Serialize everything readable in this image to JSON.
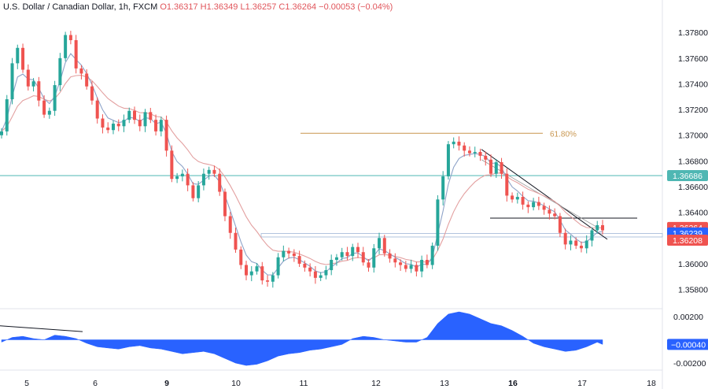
{
  "header": {
    "symbol_text": "U.S. Dollar / Canadian Dollar, 1h, FXCM",
    "ohlc_text": "O1.36317  H1.36349  L1.36257  C1.36264  −0.00053 (−0.04%)"
  },
  "colors": {
    "up": "#26a69a",
    "down": "#ef5350",
    "fast_ma": "#8ea3c8",
    "slow_ma": "#e3a0a0",
    "fib": "#c8964f",
    "level": "#4fb7b3",
    "trendline": "#131722",
    "oscillator": "#2962ff"
  },
  "price_badges": [
    {
      "text": "1.36686",
      "value": 1.36686,
      "color": "#4fb7b3"
    },
    {
      "text": "1.36264",
      "value": 1.36264,
      "color": "#ef5350"
    },
    {
      "text": "1.36239",
      "value": 1.36239,
      "color": "#2962ff"
    },
    {
      "text": "1.36208",
      "value": 1.36208,
      "color": "#ef5350"
    }
  ],
  "annotations": {
    "fib_label": "61.80%",
    "fib_level": 1.37015
  },
  "osc_badge": {
    "text": "−0.00040",
    "value": -0.0004,
    "color": "#2962ff"
  },
  "chart_data": {
    "type": "candlestick",
    "y_ticks": [
      "1.37800",
      "1.37600",
      "1.37400",
      "1.37200",
      "1.37000",
      "1.36800",
      "1.36600",
      "1.36400",
      "1.36000",
      "1.35800"
    ],
    "y_tick_values": [
      1.378,
      1.376,
      1.374,
      1.372,
      1.37,
      1.368,
      1.366,
      1.364,
      1.36,
      1.358
    ],
    "ylim": [
      1.3565,
      1.3793
    ],
    "x_ticks": [
      "5",
      "6",
      "9",
      "10",
      "11",
      "12",
      "13",
      "16",
      "17",
      "18"
    ],
    "x_tick_bold": [
      "9",
      "16"
    ],
    "levels": {
      "horizontal_support": 1.36686,
      "box_top": 1.36235,
      "box_bottom": 1.36208,
      "breakout_line": 1.36355
    },
    "price_path": [
      [
        0,
        1.3703
      ],
      [
        1,
        1.3728
      ],
      [
        2,
        1.3756
      ],
      [
        3,
        1.3768
      ],
      [
        4,
        1.3751
      ],
      [
        5,
        1.3738
      ],
      [
        6,
        1.3742
      ],
      [
        7,
        1.3727
      ],
      [
        8,
        1.3716
      ],
      [
        9,
        1.3719
      ],
      [
        10,
        1.3739
      ],
      [
        11,
        1.376
      ],
      [
        12,
        1.3778
      ],
      [
        13,
        1.3774
      ],
      [
        14,
        1.3752
      ],
      [
        15,
        1.3748
      ],
      [
        16,
        1.3738
      ],
      [
        17,
        1.3727
      ],
      [
        18,
        1.3713
      ],
      [
        19,
        1.3706
      ],
      [
        20,
        1.3704
      ],
      [
        21,
        1.3709
      ],
      [
        22,
        1.3707
      ],
      [
        23,
        1.3712
      ],
      [
        24,
        1.3719
      ],
      [
        25,
        1.3712
      ],
      [
        26,
        1.3707
      ],
      [
        27,
        1.3718
      ],
      [
        28,
        1.3712
      ],
      [
        29,
        1.3703
      ],
      [
        30,
        1.3712
      ],
      [
        31,
        1.3688
      ],
      [
        32,
        1.3666
      ],
      [
        33,
        1.3668
      ],
      [
        34,
        1.367
      ],
      [
        35,
        1.3661
      ],
      [
        36,
        1.3651
      ],
      [
        37,
        1.3661
      ],
      [
        38,
        1.367
      ],
      [
        39,
        1.3673
      ],
      [
        40,
        1.367
      ],
      [
        41,
        1.3656
      ],
      [
        42,
        1.3637
      ],
      [
        43,
        1.3624
      ],
      [
        44,
        1.3611
      ],
      [
        45,
        1.3599
      ],
      [
        46,
        1.3591
      ],
      [
        47,
        1.3594
      ],
      [
        48,
        1.3598
      ],
      [
        49,
        1.3587
      ],
      [
        50,
        1.3586
      ],
      [
        51,
        1.3591
      ],
      [
        52,
        1.3605
      ],
      [
        53,
        1.361
      ],
      [
        54,
        1.3608
      ],
      [
        55,
        1.3606
      ],
      [
        56,
        1.36
      ],
      [
        57,
        1.3597
      ],
      [
        58,
        1.3594
      ],
      [
        59,
        1.3589
      ],
      [
        60,
        1.3591
      ],
      [
        61,
        1.3595
      ],
      [
        62,
        1.3603
      ],
      [
        63,
        1.3605
      ],
      [
        64,
        1.3609
      ],
      [
        65,
        1.3606
      ],
      [
        66,
        1.3613
      ],
      [
        67,
        1.3609
      ],
      [
        68,
        1.3601
      ],
      [
        69,
        1.3597
      ],
      [
        70,
        1.3612
      ],
      [
        71,
        1.362
      ],
      [
        72,
        1.3608
      ],
      [
        73,
        1.3604
      ],
      [
        74,
        1.3601
      ],
      [
        75,
        1.3599
      ],
      [
        76,
        1.3596
      ],
      [
        77,
        1.3599
      ],
      [
        78,
        1.3594
      ],
      [
        79,
        1.3603
      ],
      [
        80,
        1.3599
      ],
      [
        81,
        1.3614
      ],
      [
        82,
        1.365
      ],
      [
        83,
        1.3668
      ],
      [
        84,
        1.3693
      ],
      [
        85,
        1.3695
      ],
      [
        86,
        1.3692
      ],
      [
        87,
        1.3688
      ],
      [
        88,
        1.3686
      ],
      [
        89,
        1.3687
      ],
      [
        90,
        1.3684
      ],
      [
        91,
        1.3681
      ],
      [
        92,
        1.367
      ],
      [
        93,
        1.3679
      ],
      [
        94,
        1.367
      ],
      [
        95,
        1.3653
      ],
      [
        96,
        1.365
      ],
      [
        97,
        1.3652
      ],
      [
        98,
        1.3646
      ],
      [
        99,
        1.3644
      ],
      [
        100,
        1.3648
      ],
      [
        101,
        1.3645
      ],
      [
        102,
        1.3642
      ],
      [
        103,
        1.3639
      ],
      [
        104,
        1.3637
      ],
      [
        105,
        1.3624
      ],
      [
        106,
        1.3615
      ],
      [
        107,
        1.3618
      ],
      [
        108,
        1.3614
      ],
      [
        109,
        1.3612
      ],
      [
        110,
        1.3618
      ],
      [
        111,
        1.3626
      ],
      [
        112,
        1.363
      ],
      [
        113,
        1.3626
      ]
    ],
    "oscillator": {
      "y_ticks": [
        "0.00200",
        "-0.00200"
      ],
      "y_tick_values": [
        0.002,
        -0.002
      ],
      "ylim": [
        -0.0026,
        0.0026
      ],
      "path": [
        [
          0,
          -0.0002
        ],
        [
          2,
          0.0002
        ],
        [
          4,
          0.0003
        ],
        [
          6,
          0.0001
        ],
        [
          8,
          0.0
        ],
        [
          10,
          0.0004
        ],
        [
          12,
          0.0003
        ],
        [
          14,
          0.0001
        ],
        [
          16,
          -0.0003
        ],
        [
          18,
          -0.0006
        ],
        [
          20,
          -0.0007
        ],
        [
          22,
          -0.0008
        ],
        [
          24,
          -0.0006
        ],
        [
          26,
          -0.0005
        ],
        [
          28,
          -0.0007
        ],
        [
          30,
          -0.0008
        ],
        [
          32,
          -0.001
        ],
        [
          34,
          -0.0012
        ],
        [
          36,
          -0.0011
        ],
        [
          38,
          -0.001
        ],
        [
          40,
          -0.0012
        ],
        [
          42,
          -0.0016
        ],
        [
          44,
          -0.002
        ],
        [
          46,
          -0.0022
        ],
        [
          48,
          -0.0021
        ],
        [
          50,
          -0.0018
        ],
        [
          52,
          -0.0014
        ],
        [
          54,
          -0.0012
        ],
        [
          56,
          -0.0011
        ],
        [
          58,
          -0.0009
        ],
        [
          60,
          -0.0008
        ],
        [
          62,
          -0.0006
        ],
        [
          64,
          -0.0004
        ],
        [
          66,
          0.0001
        ],
        [
          68,
          0.0003
        ],
        [
          70,
          0.0002
        ],
        [
          72,
          0.0
        ],
        [
          74,
          -0.0001
        ],
        [
          76,
          -0.0002
        ],
        [
          78,
          -0.0002
        ],
        [
          80,
          0.0002
        ],
        [
          82,
          0.0014
        ],
        [
          84,
          0.0022
        ],
        [
          86,
          0.0024
        ],
        [
          88,
          0.0022
        ],
        [
          90,
          0.0018
        ],
        [
          92,
          0.0014
        ],
        [
          94,
          0.0012
        ],
        [
          96,
          0.0008
        ],
        [
          98,
          0.0003
        ],
        [
          100,
          -0.0003
        ],
        [
          102,
          -0.0006
        ],
        [
          104,
          -0.0008
        ],
        [
          106,
          -0.001
        ],
        [
          108,
          -0.0009
        ],
        [
          110,
          -0.0006
        ],
        [
          112,
          -0.0002
        ],
        [
          113,
          -0.0004
        ]
      ]
    }
  }
}
